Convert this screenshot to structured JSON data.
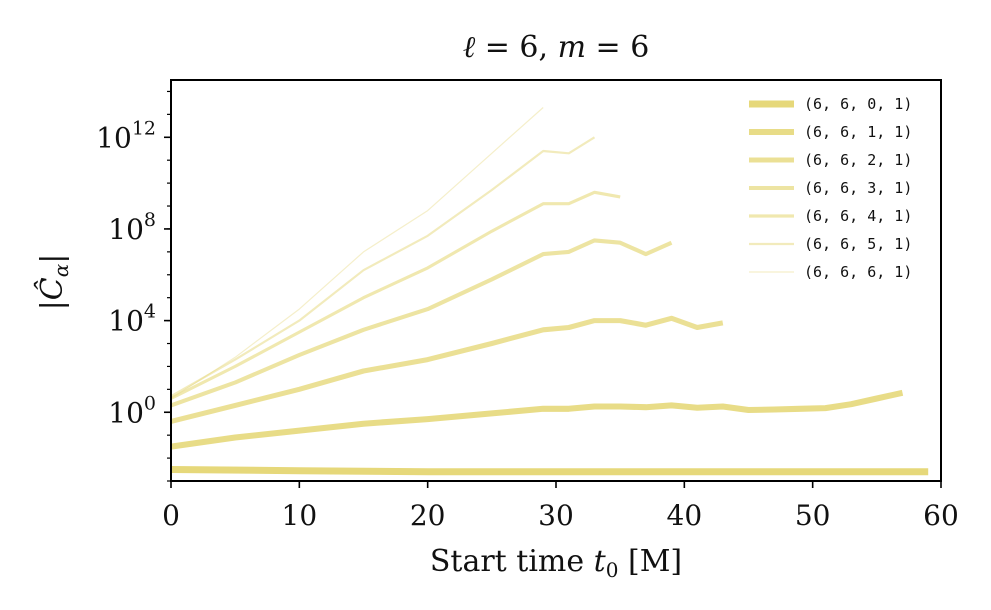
{
  "chart_data": {
    "type": "line",
    "title": "ℓ = 6, m = 6",
    "title_parts": {
      "l_sym": "ℓ",
      "l_eq": " = 6, ",
      "m_sym": "m",
      "m_eq": " = 6"
    },
    "xlabel": "Start time t₀ [M]",
    "xlabel_parts": {
      "prefix": "Start time ",
      "t": "t",
      "sub": "0",
      "suffix": " [M]"
    },
    "ylabel": "|Ĉα|",
    "ylabel_parts": {
      "bar": "|",
      "c": "Ĉ",
      "sub": "α"
    },
    "x_scale": "linear",
    "y_scale": "log",
    "xlim": [
      0,
      60
    ],
    "ylim_log10": [
      -3.0,
      14.5
    ],
    "xticks": [
      0,
      10,
      20,
      30,
      40,
      50,
      60
    ],
    "yticks": [
      {
        "base": "10",
        "exp": "0",
        "log10": 0
      },
      {
        "base": "10",
        "exp": "4",
        "log10": 4
      },
      {
        "base": "10",
        "exp": "8",
        "log10": 8
      },
      {
        "base": "10",
        "exp": "12",
        "log10": 12
      }
    ],
    "grid": false,
    "legend_position": "top-right",
    "line_color": "#e6d87a",
    "series": [
      {
        "name": "(6, 6, 0, 1)",
        "x": [
          0,
          10,
          20,
          30,
          40,
          50,
          59
        ],
        "log10_y": [
          -2.5,
          -2.55,
          -2.6,
          -2.6,
          -2.6,
          -2.6,
          -2.6
        ]
      },
      {
        "name": "(6, 6, 1, 1)",
        "x": [
          0,
          5,
          10,
          15,
          20,
          25,
          29,
          31,
          33,
          35,
          37,
          39,
          41,
          43,
          45,
          47,
          49,
          51,
          53,
          55,
          57
        ],
        "log10_y": [
          -1.5,
          -1.1,
          -0.8,
          -0.5,
          -0.3,
          -0.05,
          0.15,
          0.15,
          0.25,
          0.25,
          0.22,
          0.3,
          0.2,
          0.25,
          0.1,
          0.12,
          0.15,
          0.18,
          0.35,
          0.6,
          0.85
        ]
      },
      {
        "name": "(6, 6, 2, 1)",
        "x": [
          0,
          5,
          10,
          15,
          20,
          25,
          29,
          31,
          33,
          35,
          37,
          39,
          41,
          43
        ],
        "log10_y": [
          -0.4,
          0.3,
          1.0,
          1.8,
          2.3,
          3.0,
          3.6,
          3.7,
          4.0,
          4.0,
          3.8,
          4.1,
          3.7,
          3.9
        ]
      },
      {
        "name": "(6, 6, 3, 1)",
        "x": [
          0,
          5,
          10,
          15,
          20,
          25,
          29,
          31,
          33,
          35,
          37,
          39
        ],
        "log10_y": [
          0.3,
          1.3,
          2.5,
          3.6,
          4.5,
          5.8,
          6.9,
          7.0,
          7.5,
          7.4,
          6.9,
          7.4
        ]
      },
      {
        "name": "(6, 6, 4, 1)",
        "x": [
          0,
          5,
          10,
          15,
          20,
          25,
          29,
          31,
          33,
          35
        ],
        "log10_y": [
          0.6,
          2.0,
          3.5,
          5.0,
          6.3,
          7.9,
          9.1,
          9.1,
          9.6,
          9.4
        ]
      },
      {
        "name": "(6, 6, 5, 1)",
        "x": [
          0,
          5,
          10,
          15,
          20,
          25,
          29,
          31,
          33
        ],
        "log10_y": [
          0.7,
          2.3,
          4.0,
          6.2,
          7.7,
          9.7,
          11.4,
          11.3,
          12.0
        ]
      },
      {
        "name": "(6, 6, 6, 1)",
        "x": [
          0,
          5,
          10,
          15,
          20,
          25,
          29
        ],
        "log10_y": [
          0.6,
          2.4,
          4.5,
          7.0,
          8.8,
          11.3,
          13.3
        ]
      }
    ]
  }
}
